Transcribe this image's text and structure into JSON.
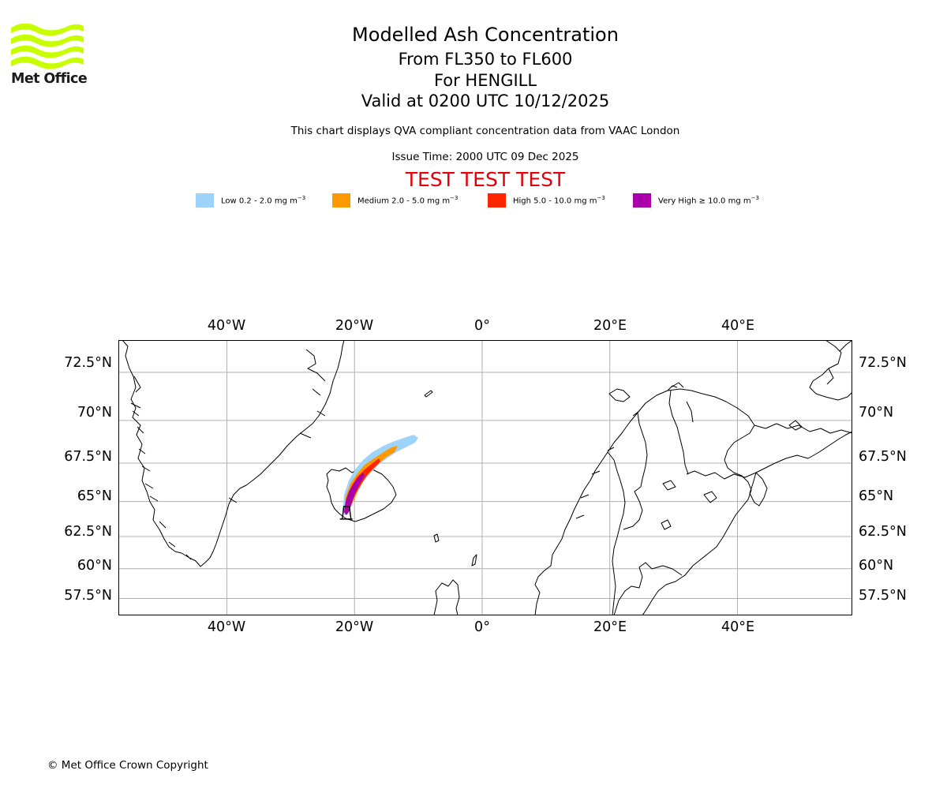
{
  "logo": {
    "text": "Met Office",
    "icon": "met-office-wave-logo",
    "color": "#c8ff00"
  },
  "header": {
    "title": "Modelled Ash Concentration",
    "levels": "From FL350 to FL600",
    "volcano": "For HENGILL",
    "valid": "Valid at 0200 UTC 10/12/2025",
    "compliance": "This chart displays QVA compliant concentration data from VAAC London",
    "issue_time": "Issue Time: 2000 UTC 09 Dec 2025",
    "test_banner": "TEST TEST TEST",
    "test_color": "#e3000b"
  },
  "legend": [
    {
      "prefix": "Low 0.2 - 2.0 mg m",
      "unit_exp": "−3",
      "color": "#9ed3fb"
    },
    {
      "prefix": "Medium 2.0 - 5.0 mg m",
      "unit_exp": "−3",
      "color": "#ff9900"
    },
    {
      "prefix": "High 5.0 - 10.0 mg m",
      "unit_exp": "−3",
      "color": "#ff2600"
    },
    {
      "prefix": "Very High  ≥  10.0 mg m",
      "unit_exp": "−3",
      "color": "#aa00aa"
    }
  ],
  "map": {
    "extent": {
      "lon_min": -57,
      "lon_max": 58,
      "lat_min": 56,
      "lat_max": 74
    },
    "lon_ticks": [
      {
        "value": -40,
        "label": "40°W"
      },
      {
        "value": -20,
        "label": "20°W"
      },
      {
        "value": 0,
        "label": "0°"
      },
      {
        "value": 20,
        "label": "20°E"
      },
      {
        "value": 40,
        "label": "40°E"
      }
    ],
    "lat_ticks": [
      {
        "value": 72.5,
        "label": "72.5°N"
      },
      {
        "value": 70,
        "label": "70°N"
      },
      {
        "value": 67.5,
        "label": "67.5°N"
      },
      {
        "value": 65,
        "label": "65°N"
      },
      {
        "value": 62.5,
        "label": "62.5°N"
      },
      {
        "value": 60,
        "label": "60°N"
      },
      {
        "value": 57.5,
        "label": "57.5°N"
      }
    ],
    "volcano": {
      "name": "HENGILL",
      "lon": -21.3,
      "lat": 64.0
    },
    "gridline_color": "#b0b0b0",
    "coast_color": "#000000"
  },
  "footer": {
    "copyright": "© Met Office Crown Copyright"
  }
}
